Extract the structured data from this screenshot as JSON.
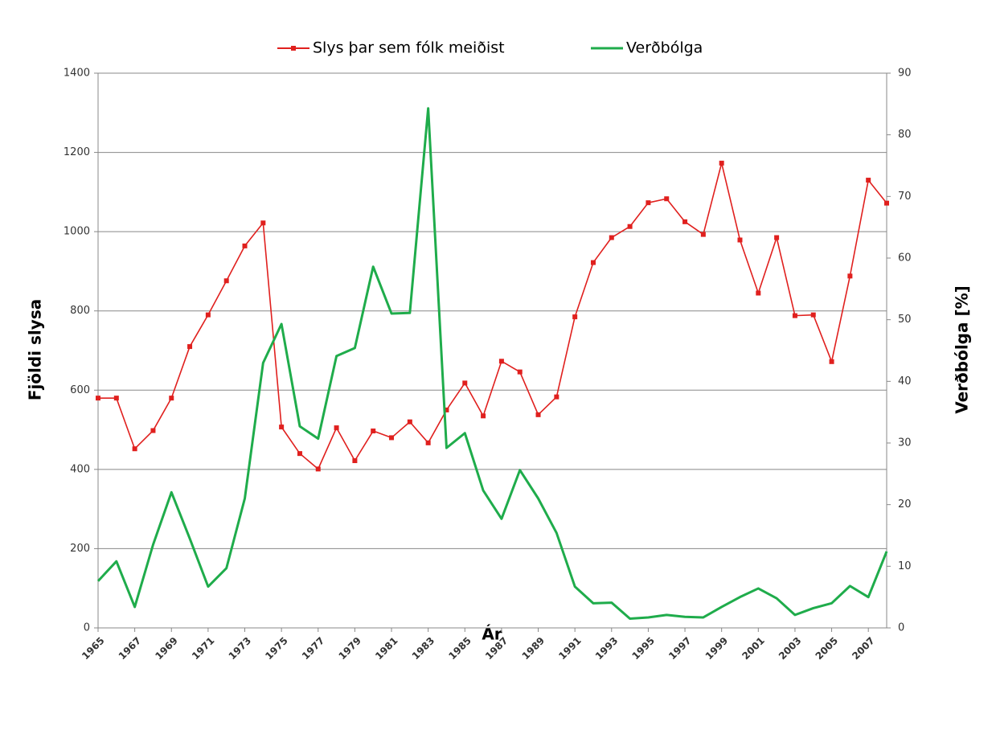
{
  "chart_data": {
    "type": "line",
    "x": [
      1965,
      1966,
      1967,
      1968,
      1969,
      1970,
      1971,
      1972,
      1973,
      1974,
      1975,
      1976,
      1977,
      1978,
      1979,
      1980,
      1981,
      1982,
      1983,
      1984,
      1985,
      1986,
      1987,
      1988,
      1989,
      1990,
      1991,
      1992,
      1993,
      1994,
      1995,
      1996,
      1997,
      1998,
      1999,
      2000,
      2001,
      2002,
      2003,
      2004,
      2005,
      2006,
      2007,
      2008
    ],
    "xlim": [
      1965,
      2008
    ],
    "xticks": [
      1965,
      1967,
      1969,
      1971,
      1973,
      1975,
      1977,
      1979,
      1981,
      1983,
      1985,
      1987,
      1989,
      1991,
      1993,
      1995,
      1997,
      1999,
      2001,
      2003,
      2005,
      2007
    ],
    "x_label": "Ár",
    "y_label": "Fjöldi slysa",
    "y2_label": "Verðbólga [%]",
    "ylim": [
      0,
      1400
    ],
    "yticks": [
      0,
      200,
      400,
      600,
      800,
      1000,
      1200,
      1400
    ],
    "y2lim": [
      0,
      90
    ],
    "y2ticks": [
      0,
      10,
      20,
      30,
      40,
      50,
      60,
      70,
      80,
      90
    ],
    "grid": true,
    "legend": "top",
    "series": [
      {
        "name": "Slys þar sem fólk meiðist",
        "color": "#e0201e",
        "marker": "square",
        "values": [
          580,
          580,
          452,
          498,
          580,
          710,
          790,
          876,
          964,
          1022,
          507,
          440,
          401,
          505,
          422,
          497,
          480,
          520,
          467,
          550,
          618,
          535,
          673,
          646,
          538,
          583,
          785,
          922,
          985,
          1013,
          1073,
          1083,
          1025,
          993,
          1173,
          979,
          845,
          985,
          788,
          790,
          672,
          888,
          1130,
          1072
        ]
      },
      {
        "name": "Verðbólga",
        "color": "#1fac4b",
        "axis": "y2",
        "values": [
          7.6,
          10.8,
          3.4,
          13.5,
          22.0,
          14.5,
          6.7,
          9.7,
          21,
          43,
          49.3,
          32.7,
          30.7,
          44.1,
          45.4,
          58.6,
          51,
          51.1,
          84.3,
          29.2,
          31.6,
          22.3,
          17.7,
          25.6,
          21,
          15.4,
          6.7,
          4.0,
          4.1,
          1.5,
          1.7,
          2.1,
          1.8,
          1.7,
          3.4,
          5.0,
          6.4,
          4.8,
          2.1,
          3.2,
          4.0,
          6.8,
          5.0,
          12.4
        ]
      }
    ]
  }
}
